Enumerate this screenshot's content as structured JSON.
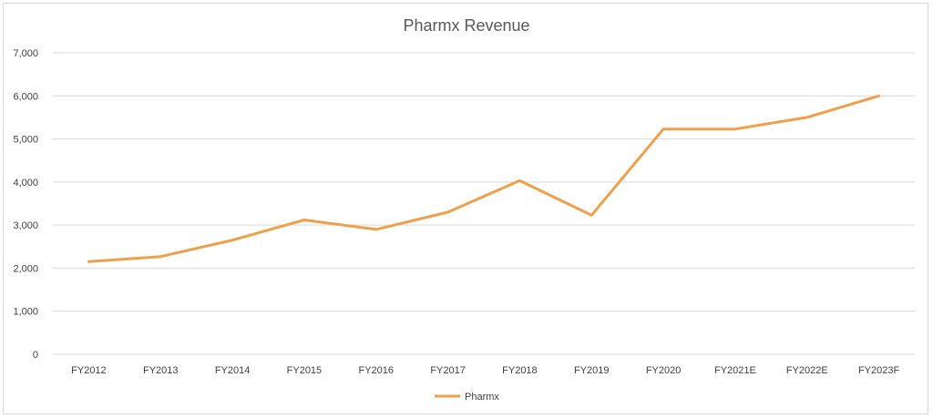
{
  "chart_data": {
    "type": "line",
    "title": "Pharmx Revenue",
    "xlabel": "",
    "ylabel": "",
    "categories": [
      "FY2012",
      "FY2013",
      "FY2014",
      "FY2015",
      "FY2016",
      "FY2017",
      "FY2018",
      "FY2019",
      "FY2020",
      "FY2021E",
      "FY2022E",
      "FY2023F"
    ],
    "series": [
      {
        "name": "Pharmx",
        "color": "#f0a04b",
        "values": [
          2150,
          2270,
          2650,
          3120,
          2900,
          3300,
          4030,
          3230,
          5230,
          5230,
          5500,
          6000
        ]
      }
    ],
    "ylim": [
      0,
      7000
    ],
    "y_ticks": [
      0,
      1000,
      2000,
      3000,
      4000,
      5000,
      6000,
      7000
    ],
    "y_tick_labels": [
      "0",
      "1,000",
      "2,000",
      "3,000",
      "4,000",
      "5,000",
      "6,000",
      "7,000"
    ],
    "grid": true,
    "legend_position": "bottom"
  }
}
